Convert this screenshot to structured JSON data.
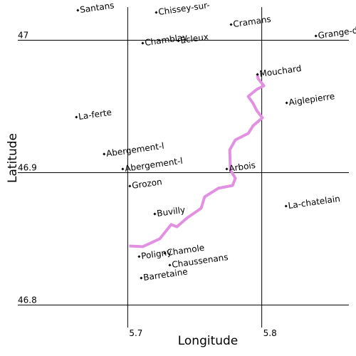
{
  "chart_data": {
    "type": "map",
    "xlabel": "Longitude",
    "ylabel": "Latitude",
    "xlim": [
      5.618,
      5.865
    ],
    "ylim": [
      46.783,
      47.025
    ],
    "xticks": [
      5.7,
      5.8
    ],
    "yticks": [
      46.8,
      46.9,
      47
    ],
    "grid": true,
    "places": {
      "names": [
        "Santans",
        "Chissey-sur-",
        "Cramans",
        "Grange-d",
        "Chamblay",
        "Ecleux",
        "Mouchard",
        "Aiglepierre",
        "La-ferte",
        "Abergement-l",
        "Abergement-l",
        "Arbois",
        "Grozon",
        "La-chatelain",
        "Buvilly",
        "Poligny",
        "Chamole",
        "Chaussenans",
        "Barretaine"
      ],
      "x": [
        5.6628,
        5.7213,
        5.7771,
        5.8404,
        5.7112,
        5.7378,
        5.7968,
        5.8186,
        5.6617,
        5.6824,
        5.6963,
        5.7739,
        5.7016,
        5.8181,
        5.7202,
        5.7085,
        5.7277,
        5.7314,
        5.7101
      ],
      "y": [
        47.0226,
        47.021,
        47.0118,
        47.0032,
        46.9978,
        46.9995,
        46.9742,
        46.9527,
        46.9419,
        46.914,
        46.9027,
        46.9027,
        46.8898,
        46.8747,
        46.8688,
        46.8366,
        46.8392,
        46.8301,
        46.8204
      ],
      "color": "#000000"
    },
    "route": {
      "color": "#e291e2",
      "x": [
        5.7011,
        5.7112,
        5.7239,
        5.7282,
        5.7324,
        5.7367,
        5.7441,
        5.7548,
        5.7574,
        5.7676,
        5.7782,
        5.7803,
        5.7766,
        5.7761,
        5.7803,
        5.7899,
        5.7936,
        5.8005,
        5.7963,
        5.7936,
        5.7899,
        5.7963,
        5.8016,
        5.7973,
        5.7968
      ],
      "y": [
        46.8446,
        46.8441,
        46.85,
        46.8554,
        46.8608,
        46.8591,
        46.8656,
        46.8731,
        46.8817,
        46.8882,
        46.8903,
        46.8957,
        46.9022,
        46.9172,
        46.9247,
        46.9296,
        46.9355,
        46.9414,
        46.9468,
        46.9522,
        46.9575,
        46.9629,
        46.9656,
        46.971,
        46.9742
      ]
    }
  }
}
